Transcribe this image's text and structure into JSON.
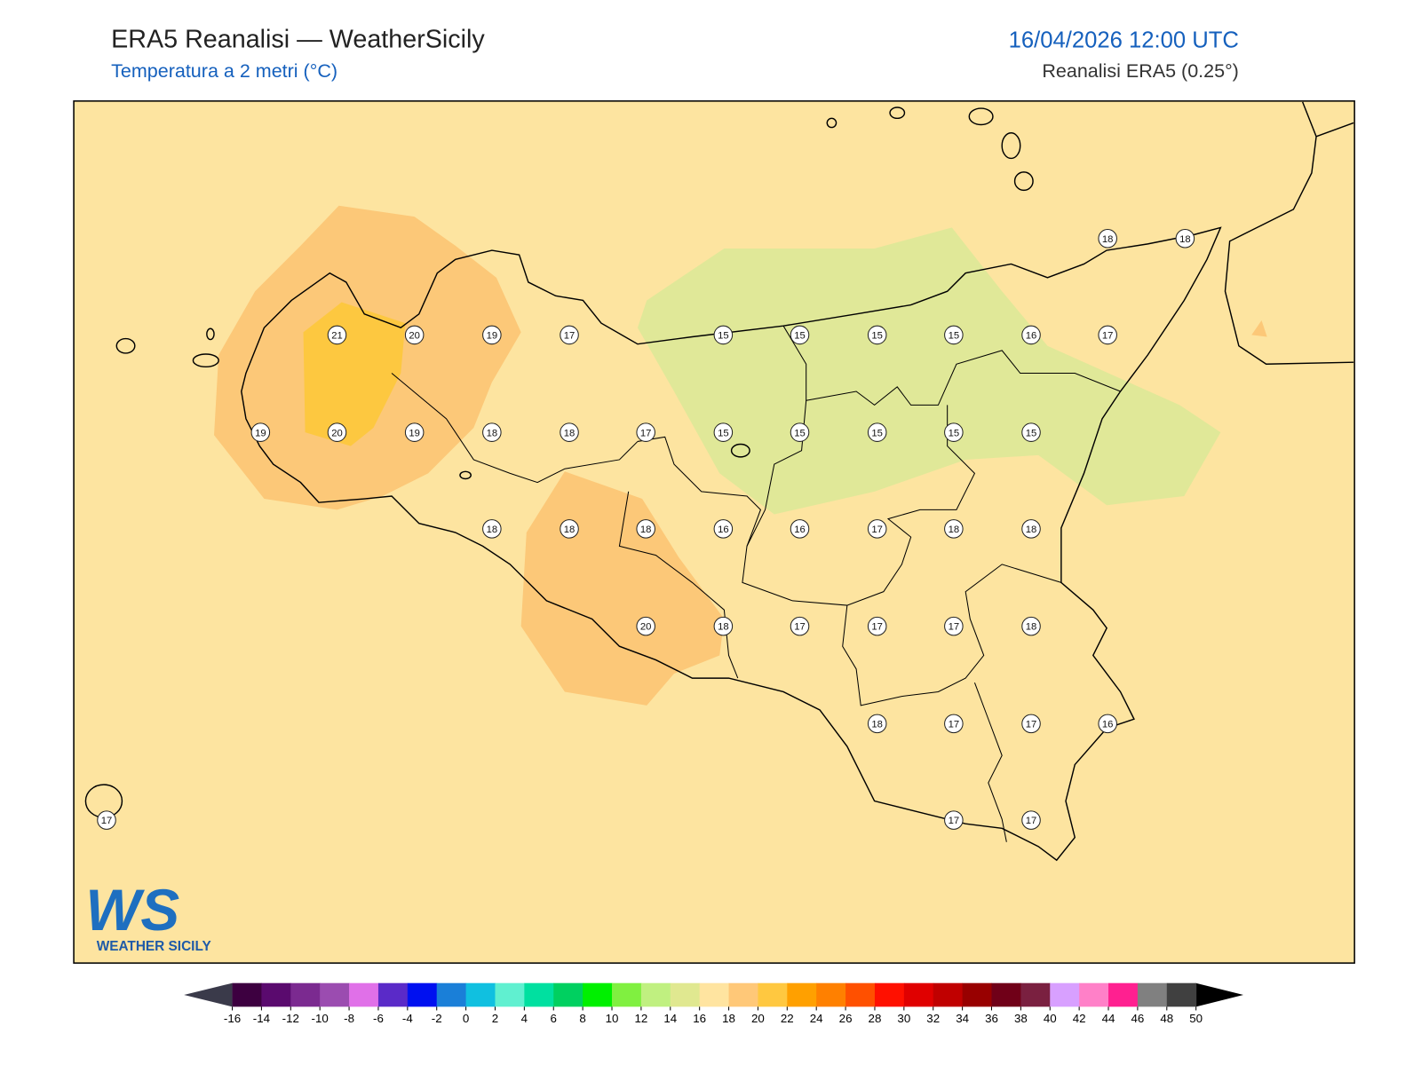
{
  "header": {
    "title": "ERA5 Reanalisi — WeatherSicily",
    "subtitle": "Temperatura a 2 metri (°C)",
    "date": "16/04/2026 12:00 UTC",
    "source": "Reanalisi ERA5 (0.25°)"
  },
  "map": {
    "station_values": [
      18,
      18,
      21,
      20,
      19,
      17,
      15,
      15,
      15,
      15,
      16,
      17,
      19,
      20,
      19,
      18,
      18,
      17,
      15,
      15,
      15,
      15,
      15,
      18,
      18,
      18,
      16,
      16,
      17,
      18,
      18,
      20,
      18,
      17,
      17,
      17,
      18,
      18,
      17,
      17,
      16,
      17,
      17,
      17
    ]
  },
  "colorbar": {
    "ticks": [
      -16,
      -14,
      -12,
      -10,
      -8,
      -6,
      -4,
      -2,
      0,
      2,
      4,
      6,
      8,
      10,
      12,
      14,
      16,
      18,
      20,
      22,
      24,
      26,
      28,
      30,
      32,
      34,
      36,
      38,
      40,
      42,
      44,
      46,
      48,
      50
    ],
    "colors": [
      "#3d0040",
      "#5a0a6e",
      "#7b2a90",
      "#9b4cb0",
      "#e070e8",
      "#5a2ac8",
      "#0010f0",
      "#1a7fd8",
      "#10c0e0",
      "#60f0d0",
      "#00e0a0",
      "#00d060",
      "#00f000",
      "#80f040",
      "#c0f080",
      "#e0e890",
      "#ffe4a0",
      "#ffc878",
      "#ffc840",
      "#ffa000",
      "#ff8000",
      "#ff5000",
      "#ff1000",
      "#e00000",
      "#c00000",
      "#980000",
      "#700018",
      "#7a2040",
      "#d8a0ff",
      "#ff80c8",
      "#ff2090",
      "#808080",
      "#404040"
    ],
    "under_color": "#3a3a4a",
    "over_color": "#000000"
  },
  "logo": {
    "initials": "WS",
    "text": "WEATHER SICILY"
  }
}
